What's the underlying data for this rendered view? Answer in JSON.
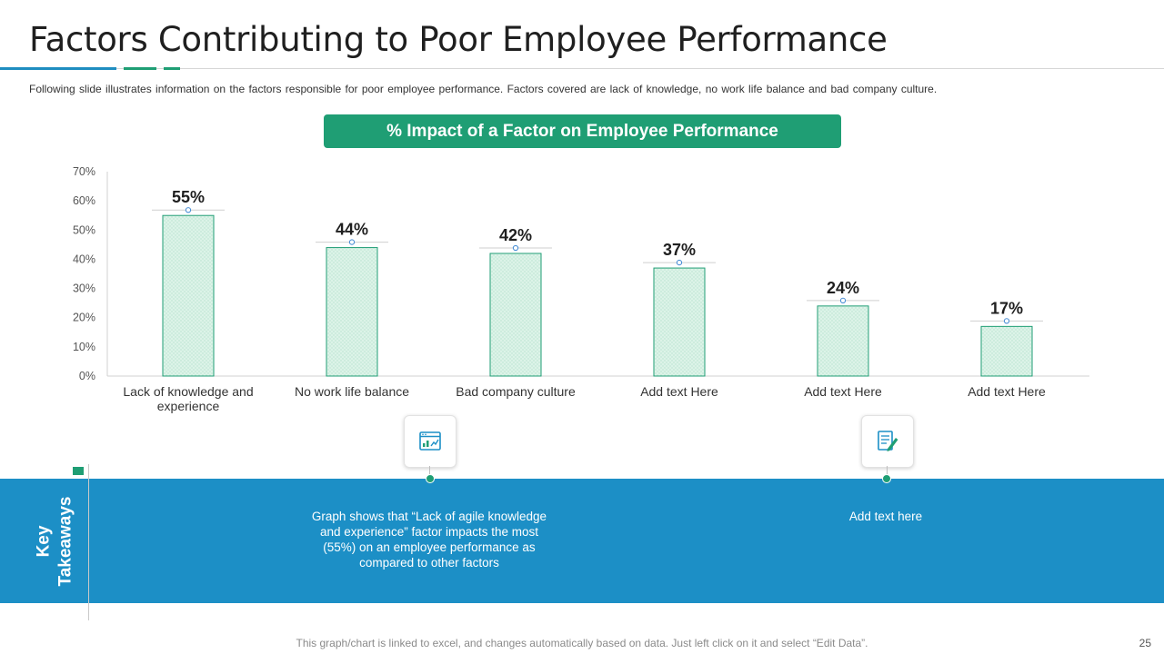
{
  "title": "Factors Contributing to Poor Employee Performance",
  "subtitle": "Following slide illustrates information on the factors responsible for poor employee performance. Factors covered are lack of knowledge, no work life balance and bad company culture.",
  "colors": {
    "green": "#1f9e74",
    "blue": "#1c8fc6",
    "bar_fill": "#d9f2e6",
    "bar_stroke": "#1f9e74",
    "accent_blue": "#1f8dc0"
  },
  "chart_data": {
    "type": "bar",
    "title": "% Impact of  a Factor on Employee Performance",
    "categories": [
      [
        "Lack of  knowledge and",
        "experience"
      ],
      [
        "No work life balance"
      ],
      [
        "Bad company culture"
      ],
      [
        "Add text Here"
      ],
      [
        "Add text Here"
      ],
      [
        "Add text Here"
      ]
    ],
    "values": [
      55,
      44,
      42,
      37,
      24,
      17
    ],
    "data_labels": [
      "55%",
      "44%",
      "42%",
      "37%",
      "24%",
      "17%"
    ],
    "yticks": [
      "0%",
      "10%",
      "20%",
      "30%",
      "40%",
      "50%",
      "60%",
      "70%"
    ],
    "ylim": [
      0,
      70
    ],
    "xlabel": "",
    "ylabel": "",
    "grid": false,
    "legend": "none"
  },
  "takeaways": {
    "label_line1": "Key",
    "label_line2": "Takeaways",
    "items": [
      {
        "icon": "chart-report-icon",
        "text_lines": [
          "Graph shows that “Lack of agile knowledge",
          "and experience” factor impacts the most",
          "(55%) on an employee performance as",
          "compared to other factors"
        ]
      },
      {
        "icon": "document-edit-icon",
        "text_lines": [
          "Add text here"
        ]
      }
    ]
  },
  "footer": "This graph/chart is linked to excel, and changes automatically based on data. Just left click on it and select “Edit Data”.",
  "page_number": "25"
}
